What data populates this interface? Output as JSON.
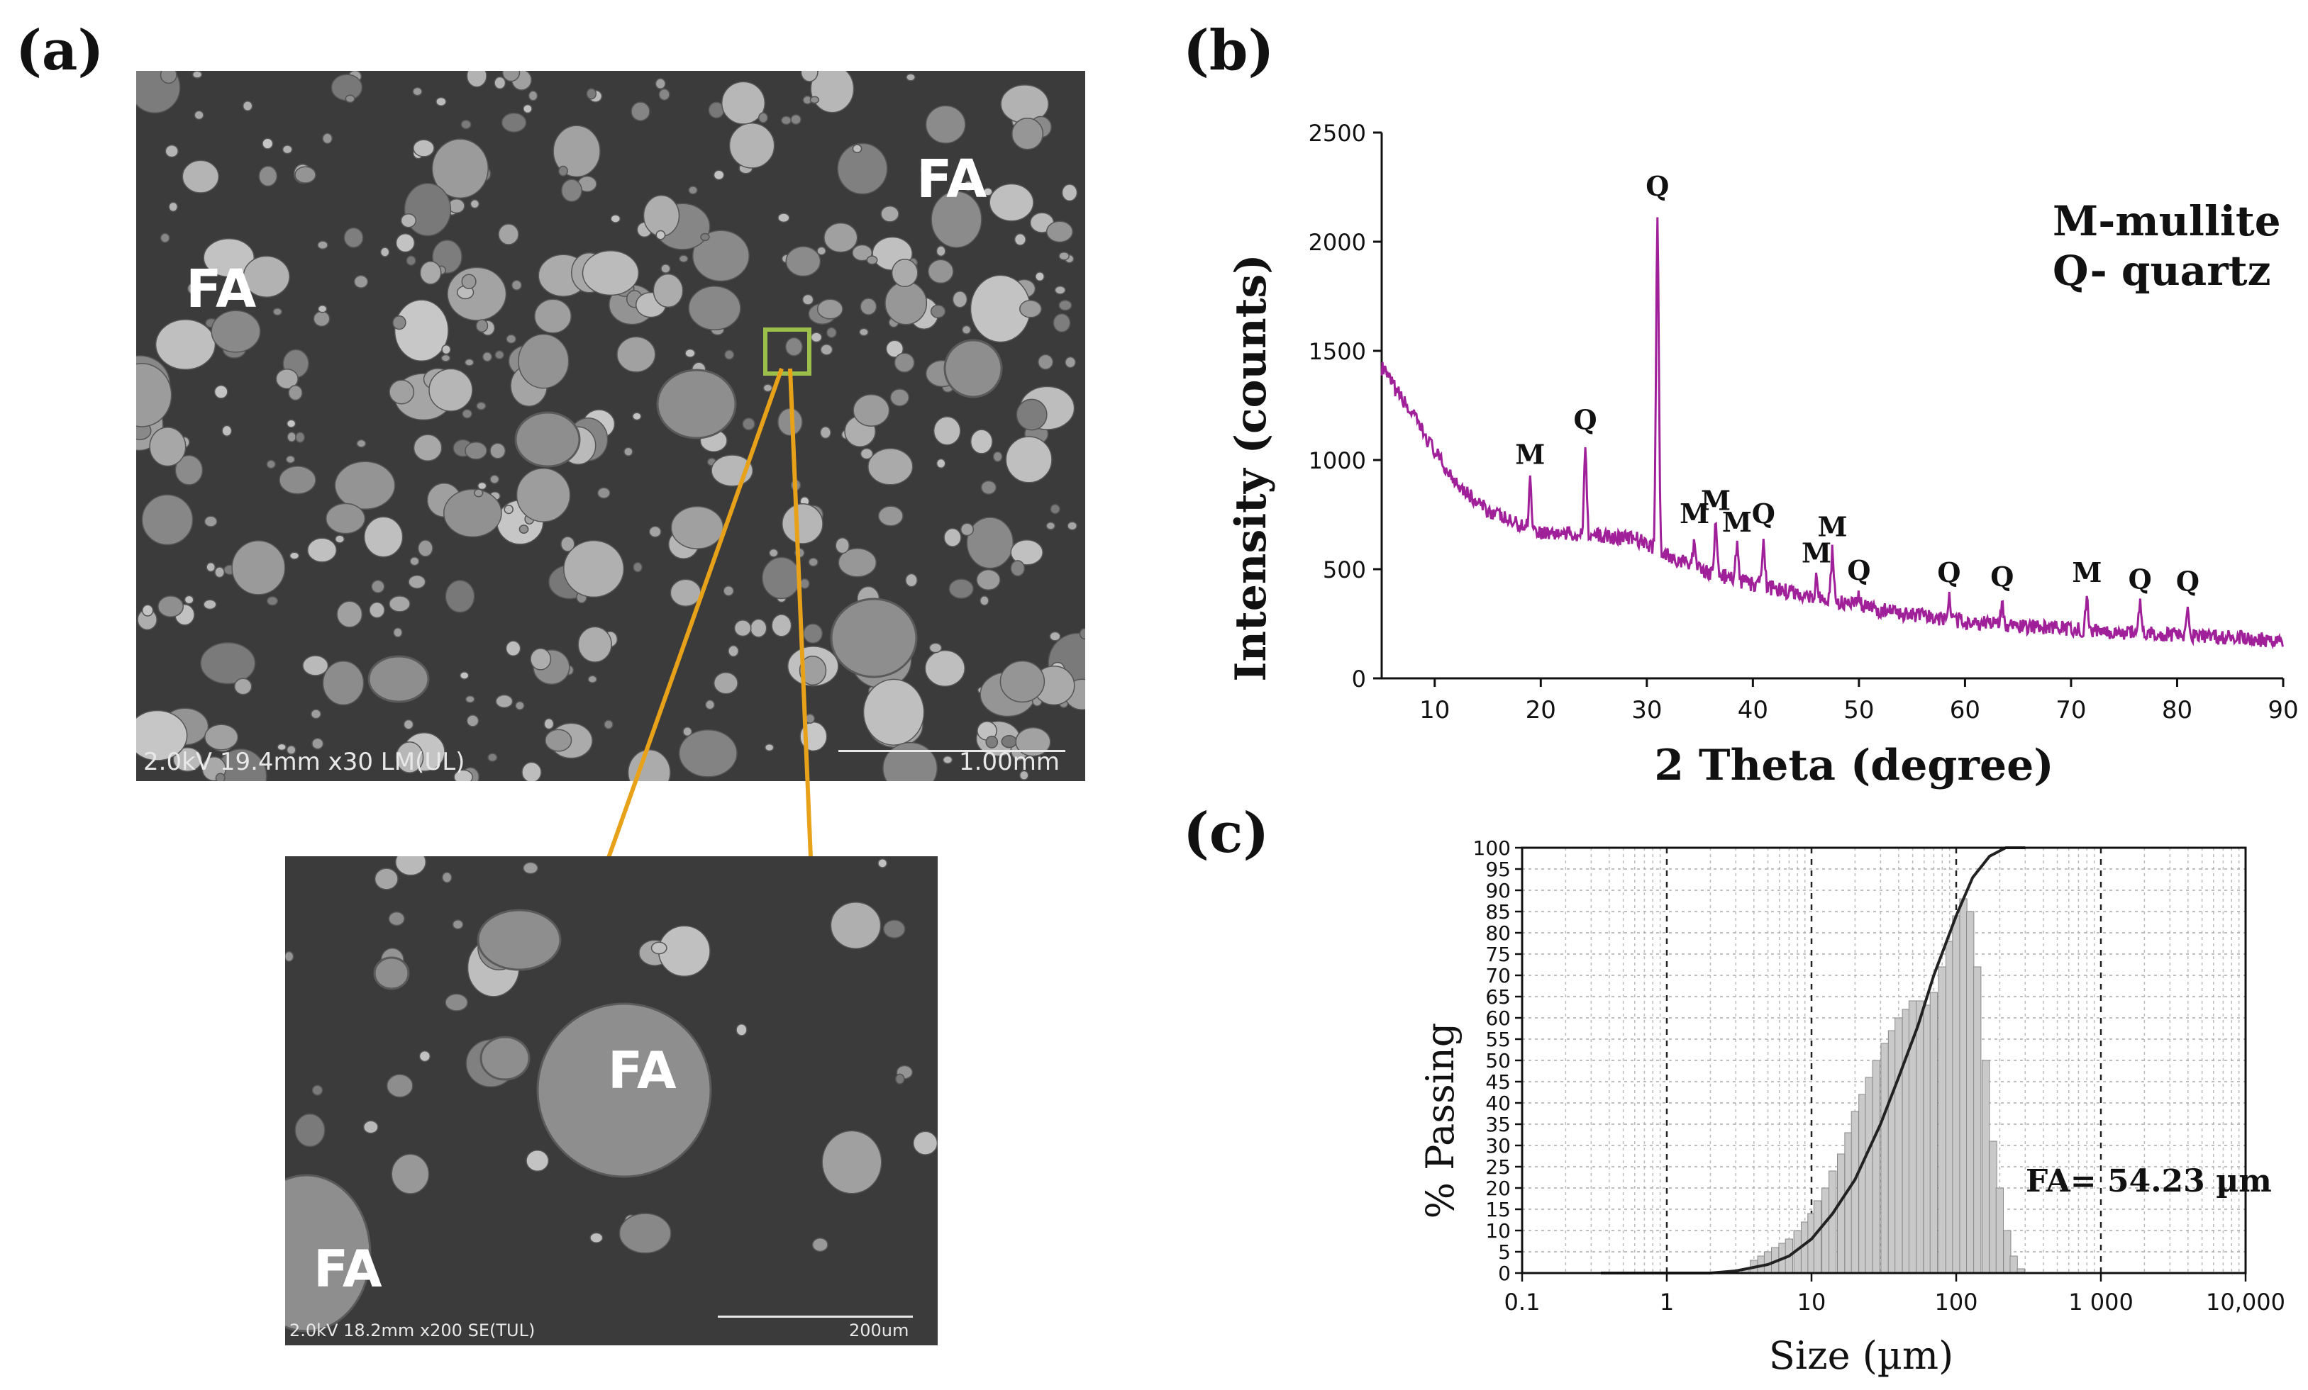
{
  "panels": {
    "a": "(a)",
    "b": "(b)",
    "c": "(c)"
  },
  "sem_top": {
    "labels": [
      "FA",
      "FA"
    ],
    "info": "2.0kV 19.4mm x30 LM(UL)",
    "scale": "1.00mm"
  },
  "sem_zoom": {
    "labels": [
      "FA",
      "FA"
    ],
    "info": "2.0kV 18.2mm x200 SE(TUL)",
    "scale": "200um"
  },
  "colors": {
    "xrd_line": "#a0209a",
    "psd_bar": "#c9c9c9",
    "callout": "#e8a21a",
    "box": "#9bbf4a"
  },
  "chart_data": [
    {
      "type": "line",
      "title": "",
      "xlabel": "2 Theta (degree)",
      "ylabel": "Intensity (counts)",
      "xlim": [
        5,
        90
      ],
      "ylim": [
        0,
        2500
      ],
      "x_ticks": [
        "10",
        "20",
        "30",
        "40",
        "50",
        "60",
        "70",
        "80",
        "90"
      ],
      "y_ticks": [
        "0",
        "500",
        "1000",
        "1500",
        "2000",
        "2500"
      ],
      "legend": [
        "M-mullite",
        "Q- quartz"
      ],
      "background": [
        [
          5,
          1420
        ],
        [
          8,
          1200
        ],
        [
          11,
          960
        ],
        [
          14,
          800
        ],
        [
          17,
          720
        ],
        [
          20,
          670
        ],
        [
          23,
          660
        ],
        [
          26,
          650
        ],
        [
          29,
          640
        ],
        [
          32,
          560
        ],
        [
          35,
          500
        ],
        [
          40,
          430
        ],
        [
          45,
          380
        ],
        [
          50,
          330
        ],
        [
          55,
          290
        ],
        [
          60,
          260
        ],
        [
          65,
          240
        ],
        [
          70,
          225
        ],
        [
          75,
          210
        ],
        [
          80,
          200
        ],
        [
          85,
          185
        ],
        [
          90,
          175
        ]
      ],
      "peaks": [
        {
          "label": "M",
          "x": 19,
          "y": 910
        },
        {
          "label": "Q",
          "x": 24.2,
          "y": 1070
        },
        {
          "label": "Q",
          "x": 31,
          "y": 2140
        },
        {
          "label": "M",
          "x": 34.5,
          "y": 640
        },
        {
          "label": "M",
          "x": 36.5,
          "y": 700
        },
        {
          "label": "M",
          "x": 38.5,
          "y": 600
        },
        {
          "label": "Q",
          "x": 41,
          "y": 640
        },
        {
          "label": "M",
          "x": 46,
          "y": 460
        },
        {
          "label": "M",
          "x": 47.5,
          "y": 580
        },
        {
          "label": "Q",
          "x": 50,
          "y": 380
        },
        {
          "label": "Q",
          "x": 58.5,
          "y": 370
        },
        {
          "label": "Q",
          "x": 63.5,
          "y": 350
        },
        {
          "label": "M",
          "x": 71.5,
          "y": 370
        },
        {
          "label": "Q",
          "x": 76.5,
          "y": 340
        },
        {
          "label": "Q",
          "x": 81,
          "y": 330
        }
      ]
    },
    {
      "type": "bar",
      "title": "",
      "xlabel": "Size (µm)",
      "ylabel": "% Passing",
      "xscale": "log",
      "xlim": [
        0.1,
        10000
      ],
      "ylim": [
        0,
        100
      ],
      "x_ticks": [
        "0.1",
        "1",
        "10",
        "100",
        "1 000",
        "10,000"
      ],
      "y_ticks": [
        "0",
        "5",
        "10",
        "15",
        "20",
        "25",
        "30",
        "35",
        "40",
        "45",
        "50",
        "55",
        "60",
        "65",
        "70",
        "75",
        "80",
        "85",
        "90",
        "95",
        "100"
      ],
      "annotation": "FA= 54.23 µm",
      "histogram": [
        [
          3.5,
          1
        ],
        [
          4,
          3
        ],
        [
          4.5,
          4
        ],
        [
          5,
          5
        ],
        [
          5.6,
          6
        ],
        [
          6.3,
          7
        ],
        [
          7,
          8
        ],
        [
          8,
          10
        ],
        [
          9,
          12
        ],
        [
          10,
          14
        ],
        [
          11,
          17
        ],
        [
          12.5,
          20
        ],
        [
          14,
          24
        ],
        [
          16,
          28
        ],
        [
          18,
          33
        ],
        [
          20,
          38
        ],
        [
          22.5,
          42
        ],
        [
          25,
          46
        ],
        [
          28,
          50
        ],
        [
          32,
          54
        ],
        [
          36,
          57
        ],
        [
          40,
          60
        ],
        [
          45,
          62
        ],
        [
          50,
          64
        ],
        [
          56,
          64
        ],
        [
          63,
          63
        ],
        [
          70,
          66
        ],
        [
          80,
          72
        ],
        [
          90,
          78
        ],
        [
          100,
          84
        ],
        [
          112,
          88
        ],
        [
          125,
          85
        ],
        [
          140,
          72
        ],
        [
          160,
          50
        ],
        [
          180,
          31
        ],
        [
          200,
          20
        ],
        [
          225,
          10
        ],
        [
          250,
          4
        ],
        [
          280,
          1
        ]
      ],
      "cumulative": [
        [
          0.35,
          0
        ],
        [
          2,
          0
        ],
        [
          3,
          0.5
        ],
        [
          5,
          2
        ],
        [
          7,
          4
        ],
        [
          10,
          8
        ],
        [
          14,
          14
        ],
        [
          20,
          22
        ],
        [
          30,
          35
        ],
        [
          40,
          46
        ],
        [
          54.23,
          58
        ],
        [
          70,
          70
        ],
        [
          100,
          84
        ],
        [
          130,
          93
        ],
        [
          170,
          98
        ],
        [
          220,
          100
        ],
        [
          300,
          100
        ]
      ]
    }
  ]
}
